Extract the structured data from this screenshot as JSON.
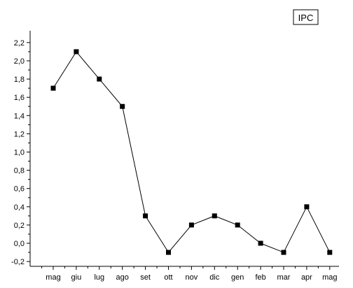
{
  "chart_data": {
    "type": "line",
    "categories": [
      "mag",
      "giu",
      "lug",
      "ago",
      "set",
      "ott",
      "nov",
      "dic",
      "gen",
      "feb",
      "mar",
      "apr",
      "mag"
    ],
    "series": [
      {
        "name": "IPC",
        "values": [
          1.7,
          2.1,
          1.8,
          1.5,
          0.3,
          -0.1,
          0.2,
          0.3,
          0.2,
          0.0,
          -0.1,
          0.4,
          -0.1
        ]
      }
    ],
    "title": "",
    "xlabel": "",
    "ylabel": "",
    "ylim": [
      -0.25,
      2.45
    ],
    "y_ticks": [
      "-0,2",
      "0,0",
      "0,2",
      "0,4",
      "0,6",
      "0,8",
      "1,0",
      "1,2",
      "1,4",
      "1,6",
      "1,8",
      "2,0",
      "2,2"
    ],
    "y_tick_values": [
      -0.2,
      0.0,
      0.2,
      0.4,
      0.6,
      0.8,
      1.0,
      1.2,
      1.4,
      1.6,
      1.8,
      2.0,
      2.2
    ],
    "grid": false,
    "legend": {
      "placement": "top-right",
      "entries": [
        "IPC"
      ]
    },
    "colors": {
      "line": "#000000",
      "marker": "#000000",
      "axis": "#000000"
    }
  }
}
